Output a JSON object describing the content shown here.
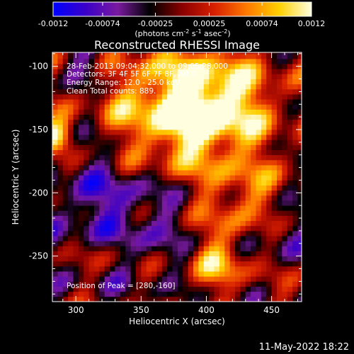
{
  "colorbar": {
    "tick_labels": [
      "-0.0012",
      "-0.00074",
      "-0.00025",
      "0.00025",
      "0.00074",
      "0.0012"
    ],
    "tick_values": [
      -0.0012,
      -0.00074,
      -0.00025,
      0.00025,
      0.00074,
      0.0012
    ],
    "range": [
      -0.0012,
      0.0012
    ],
    "unit_label": "(photons cm",
    "unit_exp1": "-2",
    "unit_mid": " s",
    "unit_exp2": "-1",
    "unit_mid2": " asec",
    "unit_exp3": "-2",
    "unit_end": ")",
    "colormap": [
      "#0000ff",
      "#3a00c8",
      "#7a1aa0",
      "#000000",
      "#8b0000",
      "#d82000",
      "#ff7a00",
      "#ffd000",
      "#ffffe0"
    ]
  },
  "plot": {
    "title": "Reconstructed RHESSI Image",
    "info_lines": [
      "28-Feb-2013 09:04:32.000 to 09:05:28.000",
      "Detectors: 3F 4F 5F 6F 7F 8F, Att 0",
      "Energy Range: 12.0 - 25.0 keV",
      "Clean     Total counts: 889."
    ],
    "peak_text": "Position of Peak = [280,-160]"
  },
  "footer": {
    "timestamp": "11-May-2022 18:22"
  },
  "chart_data": {
    "type": "heatmap",
    "title": "Reconstructed RHESSI Image",
    "xlabel": "Heliocentric X (arcsec)",
    "ylabel": "Heliocentric Y (arcsec)",
    "xlim": [
      282,
      473
    ],
    "ylim": [
      -286,
      -89
    ],
    "xticks": [
      300,
      350,
      400,
      450
    ],
    "yticks": [
      -100,
      -150,
      -200,
      -250
    ],
    "zlim": [
      -0.0012,
      0.0012
    ],
    "peak_position": [
      280,
      -160
    ],
    "grid": false,
    "grid_step_arcsec": 4,
    "features": [
      {
        "kind": "positive-band",
        "center": [
          370,
          -140
        ],
        "sigma": 34,
        "amplitude": 0.0011
      },
      {
        "kind": "positive-band",
        "center": [
          410,
          -130
        ],
        "sigma": 28,
        "amplitude": 0.001
      },
      {
        "kind": "positive-band",
        "center": [
          430,
          -210
        ],
        "sigma": 22,
        "amplitude": 0.0007
      },
      {
        "kind": "positive-peak",
        "center": [
          284,
          -155
        ],
        "sigma": 9,
        "amplitude": 0.0012
      },
      {
        "kind": "positive-blob",
        "center": [
          410,
          -255
        ],
        "sigma": 14,
        "amplitude": 0.0008
      },
      {
        "kind": "positive-blob",
        "center": [
          320,
          -245
        ],
        "sigma": 12,
        "amplitude": 0.0005
      },
      {
        "kind": "negative-region",
        "center": [
          330,
          -210
        ],
        "sigma": 40,
        "amplitude": -0.0008
      },
      {
        "kind": "negative-region",
        "center": [
          455,
          -230
        ],
        "sigma": 20,
        "amplitude": -0.0006
      },
      {
        "kind": "negative-region",
        "center": [
          310,
          -95
        ],
        "sigma": 14,
        "amplitude": -0.0005
      }
    ]
  }
}
